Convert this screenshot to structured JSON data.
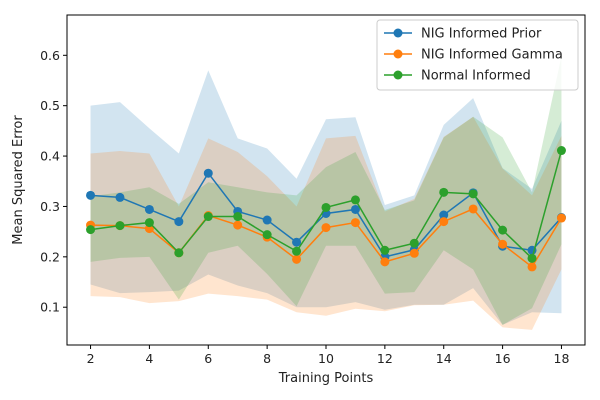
{
  "chart_data": {
    "type": "line",
    "title": "",
    "xlabel": "Training Points",
    "ylabel": "Mean Squared Error",
    "xlim": [
      1.2,
      18.8
    ],
    "ylim": [
      0.025,
      0.68
    ],
    "xticks": [
      2,
      4,
      6,
      8,
      10,
      12,
      14,
      16,
      18
    ],
    "yticks": [
      0.1,
      0.2,
      0.3,
      0.4,
      0.5,
      0.6
    ],
    "ytick_labels": [
      "0.1",
      "0.2",
      "0.3",
      "0.4",
      "0.5",
      "0.6"
    ],
    "grid": false,
    "legend_position": "top-right",
    "x": [
      2,
      3,
      4,
      5,
      6,
      7,
      8,
      9,
      10,
      11,
      12,
      13,
      14,
      15,
      16,
      17,
      18
    ],
    "series": [
      {
        "name": "NIG Informed Prior",
        "color": "#1f77b4",
        "values": [
          0.322,
          0.318,
          0.294,
          0.27,
          0.366,
          0.29,
          0.273,
          0.229,
          0.286,
          0.294,
          0.2,
          0.214,
          0.283,
          0.327,
          0.221,
          0.213,
          0.278
        ],
        "band_upper": [
          0.5,
          0.507,
          0.455,
          0.405,
          0.57,
          0.435,
          0.415,
          0.355,
          0.473,
          0.477,
          0.303,
          0.322,
          0.462,
          0.515,
          0.376,
          0.335,
          0.47
        ],
        "band_lower": [
          0.145,
          0.128,
          0.13,
          0.133,
          0.165,
          0.143,
          0.128,
          0.1,
          0.1,
          0.11,
          0.095,
          0.105,
          0.105,
          0.138,
          0.065,
          0.09,
          0.088
        ]
      },
      {
        "name": "NIG Informed Gamma",
        "color": "#ff7f0e",
        "values": [
          0.263,
          0.262,
          0.256,
          0.208,
          0.282,
          0.263,
          0.239,
          0.195,
          0.258,
          0.268,
          0.19,
          0.207,
          0.27,
          0.295,
          0.225,
          0.18,
          0.277
        ],
        "band_upper": [
          0.405,
          0.41,
          0.405,
          0.3,
          0.435,
          0.408,
          0.36,
          0.3,
          0.435,
          0.44,
          0.29,
          0.315,
          0.438,
          0.478,
          0.375,
          0.322,
          0.44
        ],
        "band_lower": [
          0.122,
          0.12,
          0.108,
          0.112,
          0.127,
          0.122,
          0.115,
          0.09,
          0.083,
          0.097,
          0.092,
          0.104,
          0.105,
          0.113,
          0.06,
          0.055,
          0.175
        ]
      },
      {
        "name": "Normal Informed",
        "color": "#2ca02c",
        "values": [
          0.254,
          0.262,
          0.268,
          0.208,
          0.28,
          0.28,
          0.244,
          0.211,
          0.298,
          0.313,
          0.213,
          0.227,
          0.328,
          0.325,
          0.253,
          0.197,
          0.411
        ],
        "band_upper": [
          0.32,
          0.328,
          0.338,
          0.305,
          0.348,
          0.338,
          0.328,
          0.322,
          0.378,
          0.408,
          0.293,
          0.312,
          0.437,
          0.478,
          0.437,
          0.328,
          0.598
        ],
        "band_lower": [
          0.19,
          0.198,
          0.2,
          0.115,
          0.208,
          0.222,
          0.166,
          0.102,
          0.222,
          0.222,
          0.127,
          0.13,
          0.213,
          0.175,
          0.065,
          0.098,
          0.225
        ]
      }
    ]
  }
}
